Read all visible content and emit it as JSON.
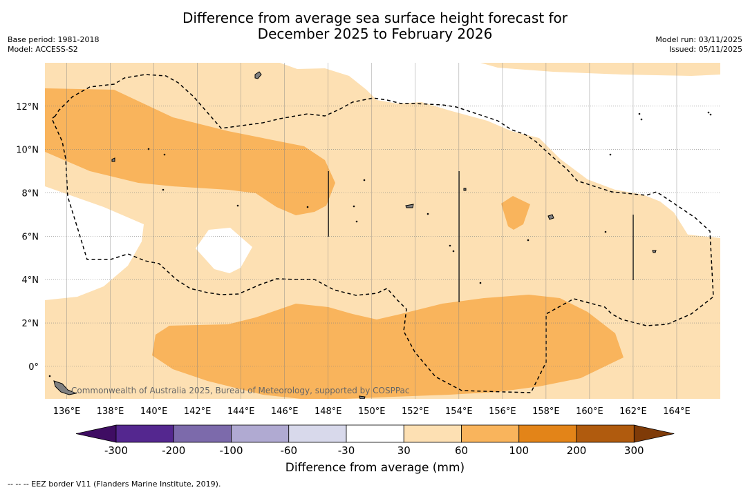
{
  "title": {
    "line1": "Difference from average sea surface height forecast for",
    "line2": "December 2025 to February 2026"
  },
  "info_left": {
    "base_period": "Base period: 1981-2018",
    "model": "Model: ACCESS-S2"
  },
  "info_right": {
    "model_run": "Model run: 03/11/2025",
    "issued": "Issued: 05/11/2025"
  },
  "map": {
    "lon_range": [
      135,
      166
    ],
    "lat_range": [
      -1.5,
      14
    ],
    "lon_ticks": [
      "136°E",
      "138°E",
      "140°E",
      "142°E",
      "144°E",
      "146°E",
      "148°E",
      "150°E",
      "152°E",
      "154°E",
      "156°E",
      "158°E",
      "160°E",
      "162°E",
      "164°E"
    ],
    "lat_ticks": [
      "12°N",
      "10°N",
      "8°N",
      "6°N",
      "4°N",
      "2°N",
      "0°"
    ],
    "watermark": "Commonwealth of Australia 2025, Bureau of Meteorology, supported by COSPPac",
    "colors": {
      "land": "#808080",
      "bin_30_60": "#fde0b3",
      "bin_60_100": "#f9b45c",
      "eez": "#000000",
      "grid": "#808080"
    }
  },
  "colorbar": {
    "title": "Difference from average (mm)",
    "tick_labels": [
      "-300",
      "-200",
      "-100",
      "-60",
      "-30",
      "30",
      "60",
      "100",
      "200",
      "300"
    ],
    "bin_colors": [
      "#54278f",
      "#7c6aab",
      "#b0aad2",
      "#d8d9eb",
      "#ffffff",
      "#fde0b3",
      "#f9b45c",
      "#e38418",
      "#b05b0e"
    ],
    "under_color": "#3f0d63",
    "over_color": "#7f3b08"
  },
  "footnote": "-- -- -- EEZ border V11 (Flanders Marine Institute, 2019)."
}
